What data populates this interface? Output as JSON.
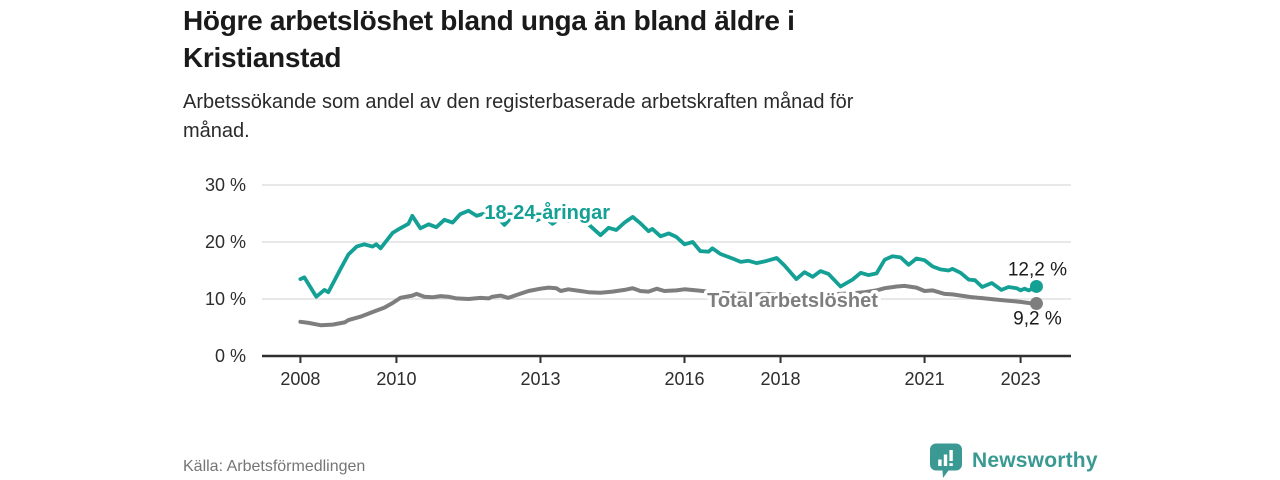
{
  "header": {
    "title": "Högre arbetslöshet bland unga än bland äldre i Kristianstad",
    "title_lines": [
      "Högre arbetslöshet bland unga än bland äldre i",
      "Kristianstad"
    ],
    "subtitle": "Arbetssökande som andel av den registerbaserade arbetskraften månad för månad.",
    "subtitle_lines": [
      "Arbetssökande som andel av den registerbaserade arbetskraften månad för",
      "månad."
    ]
  },
  "footer": {
    "source": "Källa: Arbetsförmedlingen",
    "brand_name": "Newsworthy",
    "brand_color": "#3a9a93",
    "brand_icon": "bar-chart-speech-bubble-icon"
  },
  "chart_data": {
    "type": "line",
    "title": "Högre arbetslöshet bland unga än bland äldre i Kristianstad",
    "unit": "%",
    "xlim": [
      2007.2,
      2024.05
    ],
    "ylim": [
      0,
      30
    ],
    "grid": "horizontal",
    "legend_position": "inline-labels",
    "colors": {
      "axis": "#2f2f2f",
      "grid": "#d9d9d9",
      "tick_label": "#2d2d2d",
      "value_label": "#1a1a1a"
    },
    "x_ticks": [
      {
        "year": 2008,
        "label": "2008"
      },
      {
        "year": 2010,
        "label": "2010"
      },
      {
        "year": 2013,
        "label": "2013"
      },
      {
        "year": 2016,
        "label": "2016"
      },
      {
        "year": 2018,
        "label": "2018"
      },
      {
        "year": 2021,
        "label": "2021"
      },
      {
        "year": 2023,
        "label": "2023"
      }
    ],
    "y_ticks": [
      {
        "value": 0,
        "label": "0 %"
      },
      {
        "value": 10,
        "label": "10 %"
      },
      {
        "value": 20,
        "label": "20 %"
      },
      {
        "value": 30,
        "label": "30 %"
      }
    ],
    "series": [
      {
        "name": "18-24-åringar",
        "color": "#14a095",
        "line_width": 3.8,
        "label_anchor": {
          "x": 2013.14,
          "y": 24.0
        },
        "end_label": "12,2 %",
        "end_label_side": "above",
        "end_value": 12.2,
        "x": [
          2008.0,
          2008.08,
          2008.33,
          2008.5,
          2008.58,
          2008.83,
          2009.0,
          2009.17,
          2009.33,
          2009.5,
          2009.58,
          2009.67,
          2009.92,
          2010.08,
          2010.25,
          2010.33,
          2010.5,
          2010.67,
          2010.83,
          2011.0,
          2011.17,
          2011.33,
          2011.5,
          2011.67,
          2011.83,
          2012.0,
          2012.25,
          2012.42,
          2012.58,
          2012.75,
          2012.92,
          2013.08,
          2013.25,
          2013.42,
          2013.58,
          2013.75,
          2013.92,
          2014.0,
          2014.25,
          2014.42,
          2014.58,
          2014.75,
          2014.92,
          2015.08,
          2015.25,
          2015.33,
          2015.5,
          2015.67,
          2015.83,
          2016.0,
          2016.17,
          2016.33,
          2016.5,
          2016.58,
          2016.75,
          2017.0,
          2017.17,
          2017.33,
          2017.5,
          2017.67,
          2017.92,
          2018.08,
          2018.33,
          2018.5,
          2018.67,
          2018.83,
          2019.0,
          2019.25,
          2019.5,
          2019.67,
          2019.83,
          2020.0,
          2020.17,
          2020.33,
          2020.5,
          2020.67,
          2020.83,
          2021.0,
          2021.17,
          2021.33,
          2021.5,
          2021.58,
          2021.75,
          2021.92,
          2022.05,
          2022.2,
          2022.4,
          2022.6,
          2022.75,
          2022.92,
          2023.0,
          2023.08,
          2023.17,
          2023.33
        ],
        "values": [
          13.5,
          13.8,
          10.4,
          11.6,
          11.2,
          15.2,
          17.8,
          19.2,
          19.6,
          19.2,
          19.6,
          18.9,
          21.6,
          22.4,
          23.2,
          24.6,
          22.4,
          23.1,
          22.6,
          23.9,
          23.4,
          24.9,
          25.5,
          24.6,
          25.0,
          25.2,
          23.0,
          24.6,
          24.1,
          24.4,
          23.8,
          24.4,
          23.2,
          24.2,
          23.7,
          24.1,
          23.3,
          23.1,
          21.2,
          22.5,
          22.1,
          23.4,
          24.4,
          23.3,
          21.9,
          22.3,
          21.0,
          21.5,
          20.9,
          19.6,
          20.0,
          18.4,
          18.3,
          18.9,
          17.9,
          17.1,
          16.5,
          16.7,
          16.3,
          16.6,
          17.2,
          15.9,
          13.5,
          14.7,
          13.9,
          14.9,
          14.4,
          12.2,
          13.4,
          14.6,
          14.2,
          14.5,
          16.9,
          17.5,
          17.3,
          16.0,
          17.1,
          16.8,
          15.7,
          15.2,
          15.0,
          15.3,
          14.6,
          13.4,
          13.3,
          12.1,
          12.8,
          11.6,
          12.1,
          11.9,
          11.5,
          11.8,
          11.5,
          12.2
        ]
      },
      {
        "name": "Total arbetslöshet",
        "color": "#7e7e7e",
        "line_width": 4,
        "label_anchor": {
          "x": 2018.25,
          "y": 8.6
        },
        "end_label": "9,2 %",
        "end_label_side": "below",
        "end_value": 9.2,
        "x": [
          2008.0,
          2008.17,
          2008.42,
          2008.67,
          2008.92,
          2009.0,
          2009.25,
          2009.5,
          2009.75,
          2009.92,
          2010.08,
          2010.33,
          2010.42,
          2010.58,
          2010.75,
          2010.92,
          2011.08,
          2011.25,
          2011.5,
          2011.75,
          2011.92,
          2012.0,
          2012.17,
          2012.33,
          2012.5,
          2012.75,
          2013.0,
          2013.17,
          2013.33,
          2013.42,
          2013.58,
          2013.83,
          2014.0,
          2014.25,
          2014.5,
          2014.75,
          2014.92,
          2015.08,
          2015.25,
          2015.42,
          2015.58,
          2015.83,
          2016.0,
          2016.25,
          2016.5,
          2016.75,
          2017.0,
          2017.25,
          2017.5,
          2017.75,
          2018.0,
          2018.25,
          2018.5,
          2018.75,
          2019.0,
          2019.25,
          2019.5,
          2019.75,
          2020.0,
          2020.17,
          2020.42,
          2020.58,
          2020.83,
          2021.0,
          2021.17,
          2021.42,
          2021.58,
          2021.83,
          2022.0,
          2022.25,
          2022.5,
          2022.75,
          2023.0,
          2023.17,
          2023.33
        ],
        "values": [
          6.0,
          5.8,
          5.4,
          5.5,
          5.9,
          6.3,
          6.9,
          7.7,
          8.5,
          9.3,
          10.2,
          10.6,
          10.9,
          10.4,
          10.3,
          10.5,
          10.4,
          10.1,
          10.0,
          10.2,
          10.1,
          10.4,
          10.6,
          10.2,
          10.7,
          11.4,
          11.8,
          12.0,
          11.9,
          11.4,
          11.7,
          11.4,
          11.2,
          11.1,
          11.3,
          11.6,
          11.9,
          11.4,
          11.3,
          11.8,
          11.4,
          11.5,
          11.7,
          11.5,
          11.3,
          11.1,
          11.0,
          10.9,
          10.8,
          10.9,
          10.8,
          10.6,
          10.6,
          10.7,
          10.8,
          10.9,
          11.0,
          11.2,
          11.5,
          11.9,
          12.2,
          12.3,
          12.0,
          11.4,
          11.5,
          10.9,
          10.8,
          10.5,
          10.3,
          10.1,
          9.9,
          9.7,
          9.5,
          9.3,
          9.2
        ]
      }
    ]
  }
}
